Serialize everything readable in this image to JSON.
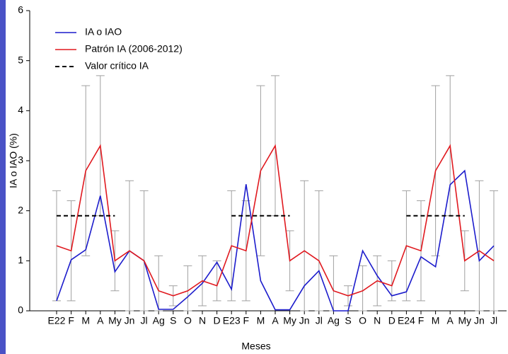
{
  "chart_data": {
    "type": "line",
    "x_label": "Meses",
    "y_label": "IA o IAO (%)",
    "categories": [
      "E22",
      "F",
      "M",
      "A",
      "My",
      "Jn",
      "Jl",
      "Ag",
      "S",
      "O",
      "N",
      "D",
      "E23",
      "F",
      "M",
      "A",
      "My",
      "Jn",
      "Jl",
      "Ag",
      "S",
      "O",
      "N",
      "D",
      "E24",
      "F",
      "M",
      "A",
      "My",
      "Jn",
      "Jl"
    ],
    "series": [
      {
        "name": "IA o IAO",
        "color": "#1c1ccc",
        "style": "solid",
        "values": [
          0.2,
          1.02,
          1.22,
          2.3,
          0.78,
          1.2,
          1.0,
          0.03,
          0.03,
          0.28,
          0.55,
          0.97,
          0.43,
          2.53,
          0.6,
          0.02,
          0.02,
          0.5,
          0.8,
          0.0,
          0.0,
          1.2,
          0.7,
          0.3,
          0.38,
          1.08,
          0.88,
          2.52,
          2.8,
          1.0,
          1.3
        ]
      },
      {
        "name": "Patrón IA (2006-2012)",
        "color": "#e0191f",
        "style": "solid",
        "values": [
          1.3,
          1.2,
          2.8,
          3.3,
          1.0,
          1.2,
          1.0,
          0.4,
          0.3,
          0.4,
          0.6,
          0.5,
          1.3,
          1.2,
          2.8,
          3.3,
          1.0,
          1.2,
          1.0,
          0.4,
          0.3,
          0.4,
          0.6,
          0.5,
          1.3,
          1.2,
          2.8,
          3.3,
          1.0,
          1.2,
          1.0
        ],
        "error_low": [
          0.2,
          0.2,
          1.1,
          1.9,
          0.4,
          0,
          0,
          0,
          0.1,
          0,
          0.1,
          0.2,
          0.2,
          0.2,
          1.1,
          1.9,
          0.4,
          0,
          0,
          0,
          0.1,
          0,
          0.1,
          0.2,
          0.2,
          0.2,
          1.1,
          1.9,
          0.4,
          0,
          0
        ],
        "error_high": [
          2.4,
          2.2,
          4.5,
          4.7,
          1.6,
          2.6,
          2.4,
          1.1,
          0.5,
          0.9,
          1.1,
          1.0,
          2.4,
          2.2,
          4.5,
          4.7,
          1.6,
          2.6,
          2.4,
          1.1,
          0.5,
          0.9,
          1.1,
          1.0,
          2.4,
          2.2,
          4.5,
          4.7,
          1.6,
          2.6,
          2.4
        ],
        "error_color": "#a0a0a0"
      },
      {
        "name": "Valor crítico IA",
        "color": "#000000",
        "style": "dashed",
        "values": [
          1.9,
          1.9,
          1.9,
          1.9,
          1.9,
          null,
          null,
          null,
          null,
          null,
          null,
          null,
          1.9,
          1.9,
          1.9,
          1.9,
          1.9,
          null,
          null,
          null,
          null,
          null,
          null,
          null,
          1.9,
          1.9,
          1.9,
          1.9,
          1.9,
          null,
          null
        ]
      }
    ],
    "ylim": [
      0,
      6
    ],
    "yticks": [
      0,
      1,
      2,
      3,
      4,
      5,
      6
    ],
    "grid": false,
    "legend": "upper left"
  }
}
